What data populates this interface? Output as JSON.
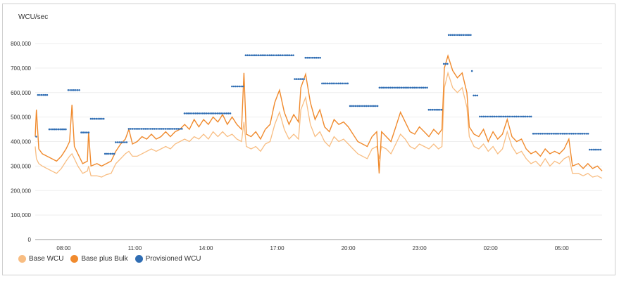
{
  "chart_data": {
    "type": "line",
    "ylabel": "WCU/sec",
    "ylim": [
      0,
      800000
    ],
    "yticks": [
      0,
      100000,
      200000,
      300000,
      400000,
      500000,
      600000,
      700000,
      800000
    ],
    "ytick_labels": [
      "0",
      "100,000",
      "200,000",
      "300,000",
      "400,000",
      "500,000",
      "600,000",
      "700,000",
      "800,000"
    ],
    "xlim_hours": [
      6.8,
      30.7
    ],
    "xticks_hours": [
      8,
      11,
      14,
      17,
      20,
      23,
      26,
      29
    ],
    "xtick_labels": [
      "08:00",
      "11:00",
      "14:00",
      "17:00",
      "20:00",
      "23:00",
      "02:00",
      "05:00"
    ],
    "grid": true,
    "legend_position": "bottom-left",
    "colors": {
      "base": "#f8bd82",
      "bulk": "#f08a2d",
      "provisioned": "#2f6db3"
    },
    "series": [
      {
        "name": "Base WCU",
        "key": "base"
      },
      {
        "name": "Base plus Bulk",
        "key": "bulk"
      },
      {
        "name": "Provisioned WCU",
        "key": "provisioned"
      }
    ],
    "usage_points_hours_bulk_base_thousands": [
      [
        6.8,
        420,
        380
      ],
      [
        6.85,
        530,
        330
      ],
      [
        6.95,
        370,
        310
      ],
      [
        7.1,
        350,
        300
      ],
      [
        7.3,
        340,
        290
      ],
      [
        7.5,
        330,
        280
      ],
      [
        7.7,
        320,
        270
      ],
      [
        7.9,
        340,
        290
      ],
      [
        8.1,
        370,
        320
      ],
      [
        8.25,
        400,
        340
      ],
      [
        8.35,
        550,
        350
      ],
      [
        8.45,
        380,
        330
      ],
      [
        8.6,
        350,
        300
      ],
      [
        8.8,
        310,
        270
      ],
      [
        9.0,
        320,
        280
      ],
      [
        9.05,
        440,
        300
      ],
      [
        9.15,
        300,
        260
      ],
      [
        9.4,
        310,
        260
      ],
      [
        9.6,
        300,
        255
      ],
      [
        9.8,
        310,
        265
      ],
      [
        10.0,
        320,
        270
      ],
      [
        10.2,
        360,
        310
      ],
      [
        10.4,
        390,
        330
      ],
      [
        10.6,
        410,
        350
      ],
      [
        10.75,
        450,
        360
      ],
      [
        10.9,
        390,
        340
      ],
      [
        11.1,
        400,
        340
      ],
      [
        11.3,
        420,
        350
      ],
      [
        11.5,
        410,
        360
      ],
      [
        11.7,
        430,
        370
      ],
      [
        11.9,
        410,
        360
      ],
      [
        12.1,
        420,
        370
      ],
      [
        12.3,
        440,
        380
      ],
      [
        12.5,
        420,
        370
      ],
      [
        12.7,
        440,
        390
      ],
      [
        12.9,
        450,
        400
      ],
      [
        13.1,
        470,
        410
      ],
      [
        13.3,
        450,
        400
      ],
      [
        13.5,
        490,
        420
      ],
      [
        13.7,
        460,
        410
      ],
      [
        13.9,
        490,
        430
      ],
      [
        14.1,
        470,
        410
      ],
      [
        14.3,
        500,
        440
      ],
      [
        14.5,
        480,
        420
      ],
      [
        14.7,
        510,
        440
      ],
      [
        14.9,
        470,
        420
      ],
      [
        15.1,
        500,
        430
      ],
      [
        15.3,
        470,
        410
      ],
      [
        15.5,
        450,
        400
      ],
      [
        15.6,
        680,
        480
      ],
      [
        15.7,
        430,
        380
      ],
      [
        15.9,
        420,
        370
      ],
      [
        16.1,
        440,
        380
      ],
      [
        16.3,
        410,
        360
      ],
      [
        16.5,
        450,
        390
      ],
      [
        16.7,
        470,
        400
      ],
      [
        16.9,
        560,
        470
      ],
      [
        17.1,
        610,
        520
      ],
      [
        17.3,
        520,
        450
      ],
      [
        17.5,
        470,
        410
      ],
      [
        17.7,
        510,
        430
      ],
      [
        17.9,
        480,
        410
      ],
      [
        18.0,
        620,
        530
      ],
      [
        18.2,
        675,
        580
      ],
      [
        18.4,
        560,
        470
      ],
      [
        18.6,
        490,
        420
      ],
      [
        18.8,
        530,
        440
      ],
      [
        19.0,
        460,
        400
      ],
      [
        19.2,
        440,
        380
      ],
      [
        19.4,
        490,
        420
      ],
      [
        19.6,
        470,
        400
      ],
      [
        19.8,
        480,
        410
      ],
      [
        20.0,
        460,
        390
      ],
      [
        20.2,
        430,
        370
      ],
      [
        20.4,
        400,
        350
      ],
      [
        20.6,
        390,
        340
      ],
      [
        20.8,
        380,
        330
      ],
      [
        21.0,
        420,
        370
      ],
      [
        21.2,
        440,
        380
      ],
      [
        21.3,
        270,
        330
      ],
      [
        21.4,
        440,
        380
      ],
      [
        21.6,
        420,
        370
      ],
      [
        21.8,
        400,
        350
      ],
      [
        22.0,
        460,
        390
      ],
      [
        22.2,
        520,
        430
      ],
      [
        22.4,
        480,
        410
      ],
      [
        22.6,
        440,
        380
      ],
      [
        22.8,
        430,
        370
      ],
      [
        23.0,
        460,
        390
      ],
      [
        23.2,
        440,
        380
      ],
      [
        23.4,
        420,
        370
      ],
      [
        23.6,
        450,
        390
      ],
      [
        23.8,
        430,
        370
      ],
      [
        23.95,
        450,
        380
      ],
      [
        24.05,
        700,
        620
      ],
      [
        24.2,
        750,
        680
      ],
      [
        24.4,
        690,
        620
      ],
      [
        24.6,
        660,
        600
      ],
      [
        24.8,
        680,
        620
      ],
      [
        25.0,
        600,
        540
      ],
      [
        25.1,
        460,
        420
      ],
      [
        25.3,
        430,
        380
      ],
      [
        25.5,
        420,
        370
      ],
      [
        25.7,
        450,
        390
      ],
      [
        25.9,
        400,
        360
      ],
      [
        26.1,
        440,
        380
      ],
      [
        26.3,
        410,
        350
      ],
      [
        26.5,
        430,
        370
      ],
      [
        26.7,
        490,
        440
      ],
      [
        26.9,
        420,
        380
      ],
      [
        27.1,
        400,
        350
      ],
      [
        27.3,
        410,
        360
      ],
      [
        27.5,
        370,
        330
      ],
      [
        27.7,
        350,
        310
      ],
      [
        27.9,
        360,
        320
      ],
      [
        28.1,
        340,
        300
      ],
      [
        28.3,
        370,
        330
      ],
      [
        28.5,
        350,
        300
      ],
      [
        28.7,
        360,
        320
      ],
      [
        28.9,
        350,
        310
      ],
      [
        29.1,
        370,
        330
      ],
      [
        29.3,
        410,
        340
      ],
      [
        29.45,
        300,
        270
      ],
      [
        29.7,
        310,
        270
      ],
      [
        29.9,
        290,
        260
      ],
      [
        30.1,
        310,
        270
      ],
      [
        30.3,
        290,
        255
      ],
      [
        30.5,
        300,
        260
      ],
      [
        30.7,
        280,
        250
      ]
    ],
    "provisioned_steps_hours_thousands": [
      [
        6.8,
        6.87,
        420
      ],
      [
        6.87,
        7.35,
        590
      ],
      [
        7.35,
        8.15,
        450
      ],
      [
        8.15,
        8.7,
        610
      ],
      [
        8.7,
        9.1,
        437
      ],
      [
        9.1,
        9.7,
        493
      ],
      [
        9.7,
        10.15,
        350
      ],
      [
        10.15,
        10.7,
        397
      ],
      [
        10.7,
        13.05,
        452
      ],
      [
        13.05,
        15.05,
        515
      ],
      [
        15.05,
        15.63,
        625
      ],
      [
        15.63,
        17.7,
        752
      ],
      [
        17.7,
        18.15,
        655
      ],
      [
        18.15,
        18.85,
        742
      ],
      [
        18.85,
        20.03,
        637
      ],
      [
        20.03,
        21.27,
        545
      ],
      [
        21.27,
        23.35,
        620
      ],
      [
        23.35,
        23.98,
        530
      ],
      [
        23.98,
        24.19,
        717
      ],
      [
        24.19,
        25.17,
        835
      ],
      [
        25.17,
        25.24,
        688
      ],
      [
        25.24,
        25.5,
        588
      ],
      [
        25.5,
        27.75,
        502
      ],
      [
        27.75,
        30.13,
        432
      ],
      [
        30.13,
        30.7,
        367
      ]
    ]
  }
}
